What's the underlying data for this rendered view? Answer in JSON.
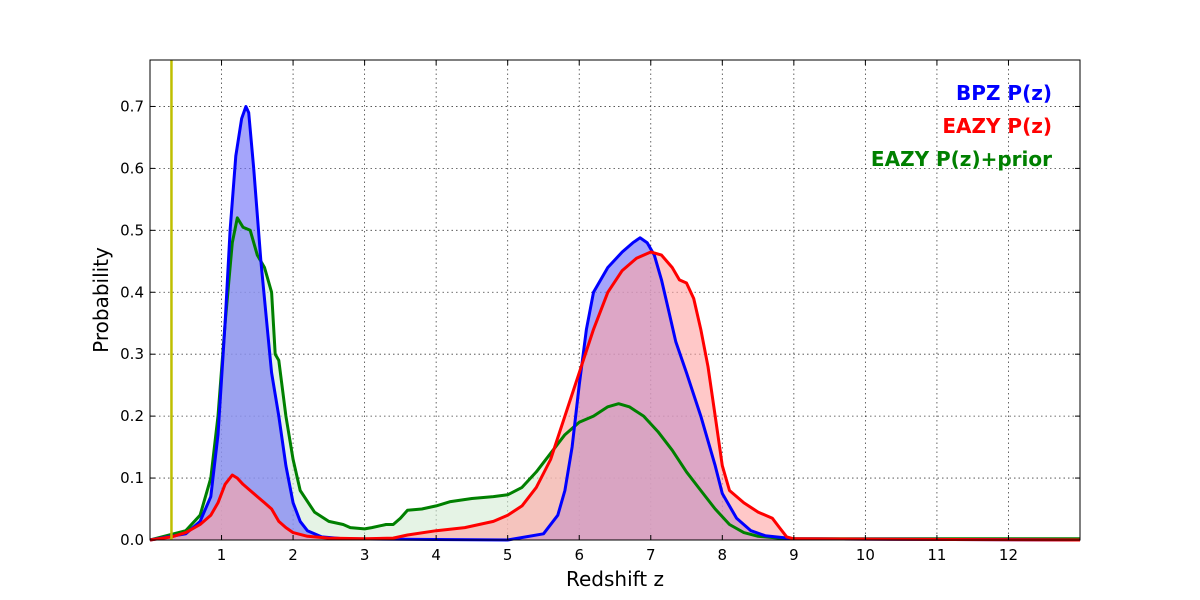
{
  "chart_data": {
    "type": "area",
    "xlabel": "Redshift z",
    "ylabel": "Probability",
    "xlim": [
      0,
      13
    ],
    "ylim": [
      0,
      0.775
    ],
    "x_ticks": [
      1,
      2,
      3,
      4,
      5,
      6,
      7,
      8,
      9,
      10,
      11,
      12
    ],
    "y_ticks": [
      0.0,
      0.1,
      0.2,
      0.3,
      0.4,
      0.5,
      0.6,
      0.7
    ],
    "grid": true,
    "legend_position": "top-right",
    "reference_line": {
      "x": 0.3,
      "color": "#bfbf00"
    },
    "series": [
      {
        "name": "EAZY P(z)+prior",
        "color": "#008000",
        "fill": "#d5ecd5",
        "points": [
          [
            0,
            0
          ],
          [
            0.5,
            0.015
          ],
          [
            0.7,
            0.04
          ],
          [
            0.85,
            0.1
          ],
          [
            0.95,
            0.2
          ],
          [
            1.05,
            0.35
          ],
          [
            1.15,
            0.48
          ],
          [
            1.22,
            0.52
          ],
          [
            1.3,
            0.505
          ],
          [
            1.4,
            0.5
          ],
          [
            1.5,
            0.46
          ],
          [
            1.6,
            0.44
          ],
          [
            1.7,
            0.4
          ],
          [
            1.75,
            0.3
          ],
          [
            1.8,
            0.29
          ],
          [
            1.9,
            0.2
          ],
          [
            2.0,
            0.13
          ],
          [
            2.1,
            0.08
          ],
          [
            2.3,
            0.045
          ],
          [
            2.5,
            0.03
          ],
          [
            2.7,
            0.025
          ],
          [
            2.8,
            0.02
          ],
          [
            3.0,
            0.018
          ],
          [
            3.1,
            0.02
          ],
          [
            3.3,
            0.025
          ],
          [
            3.4,
            0.025
          ],
          [
            3.5,
            0.035
          ],
          [
            3.6,
            0.048
          ],
          [
            3.8,
            0.05
          ],
          [
            4.0,
            0.055
          ],
          [
            4.2,
            0.062
          ],
          [
            4.5,
            0.067
          ],
          [
            4.8,
            0.07
          ],
          [
            5.0,
            0.073
          ],
          [
            5.2,
            0.085
          ],
          [
            5.4,
            0.11
          ],
          [
            5.6,
            0.14
          ],
          [
            5.8,
            0.17
          ],
          [
            6.0,
            0.19
          ],
          [
            6.2,
            0.2
          ],
          [
            6.4,
            0.215
          ],
          [
            6.55,
            0.22
          ],
          [
            6.7,
            0.215
          ],
          [
            6.9,
            0.2
          ],
          [
            7.1,
            0.175
          ],
          [
            7.3,
            0.145
          ],
          [
            7.5,
            0.11
          ],
          [
            7.7,
            0.08
          ],
          [
            7.9,
            0.05
          ],
          [
            8.1,
            0.025
          ],
          [
            8.3,
            0.012
          ],
          [
            8.5,
            0.006
          ],
          [
            8.8,
            0.003
          ],
          [
            9.0,
            0.002
          ],
          [
            13,
            0.002
          ]
        ]
      },
      {
        "name": "BPZ P(z)",
        "color": "#0000ff",
        "fill": "#6e6ef7",
        "points": [
          [
            0,
            0
          ],
          [
            0.5,
            0.01
          ],
          [
            0.7,
            0.03
          ],
          [
            0.85,
            0.07
          ],
          [
            0.95,
            0.17
          ],
          [
            1.05,
            0.35
          ],
          [
            1.12,
            0.5
          ],
          [
            1.2,
            0.62
          ],
          [
            1.28,
            0.68
          ],
          [
            1.34,
            0.7
          ],
          [
            1.38,
            0.69
          ],
          [
            1.45,
            0.6
          ],
          [
            1.55,
            0.45
          ],
          [
            1.65,
            0.33
          ],
          [
            1.7,
            0.27
          ],
          [
            1.8,
            0.2
          ],
          [
            1.9,
            0.12
          ],
          [
            2.0,
            0.06
          ],
          [
            2.1,
            0.03
          ],
          [
            2.2,
            0.015
          ],
          [
            2.4,
            0.005
          ],
          [
            2.7,
            0.002
          ],
          [
            5.0,
            0.0
          ],
          [
            5.5,
            0.01
          ],
          [
            5.7,
            0.04
          ],
          [
            5.8,
            0.08
          ],
          [
            5.9,
            0.15
          ],
          [
            6.0,
            0.25
          ],
          [
            6.1,
            0.34
          ],
          [
            6.2,
            0.4
          ],
          [
            6.4,
            0.44
          ],
          [
            6.6,
            0.465
          ],
          [
            6.75,
            0.48
          ],
          [
            6.85,
            0.488
          ],
          [
            6.95,
            0.48
          ],
          [
            7.05,
            0.46
          ],
          [
            7.15,
            0.42
          ],
          [
            7.25,
            0.37
          ],
          [
            7.35,
            0.32
          ],
          [
            7.5,
            0.27
          ],
          [
            7.7,
            0.2
          ],
          [
            7.9,
            0.12
          ],
          [
            8.0,
            0.075
          ],
          [
            8.2,
            0.035
          ],
          [
            8.4,
            0.015
          ],
          [
            8.6,
            0.007
          ],
          [
            9.0,
            0.002
          ],
          [
            13,
            0.0
          ]
        ]
      },
      {
        "name": "EAZY P(z)",
        "color": "#ff0000",
        "fill": "#ffa6a6",
        "points": [
          [
            0,
            0
          ],
          [
            0.3,
            0.005
          ],
          [
            0.5,
            0.012
          ],
          [
            0.7,
            0.025
          ],
          [
            0.85,
            0.04
          ],
          [
            0.95,
            0.06
          ],
          [
            1.05,
            0.09
          ],
          [
            1.15,
            0.105
          ],
          [
            1.22,
            0.1
          ],
          [
            1.3,
            0.09
          ],
          [
            1.4,
            0.08
          ],
          [
            1.5,
            0.07
          ],
          [
            1.6,
            0.06
          ],
          [
            1.7,
            0.05
          ],
          [
            1.8,
            0.03
          ],
          [
            1.9,
            0.02
          ],
          [
            2.0,
            0.012
          ],
          [
            2.2,
            0.006
          ],
          [
            2.5,
            0.003
          ],
          [
            3.0,
            0.002
          ],
          [
            3.4,
            0.003
          ],
          [
            3.6,
            0.008
          ],
          [
            4.0,
            0.015
          ],
          [
            4.4,
            0.02
          ],
          [
            4.8,
            0.03
          ],
          [
            5.0,
            0.04
          ],
          [
            5.2,
            0.055
          ],
          [
            5.4,
            0.085
          ],
          [
            5.6,
            0.13
          ],
          [
            5.8,
            0.2
          ],
          [
            6.0,
            0.27
          ],
          [
            6.2,
            0.34
          ],
          [
            6.4,
            0.4
          ],
          [
            6.6,
            0.435
          ],
          [
            6.8,
            0.455
          ],
          [
            7.0,
            0.465
          ],
          [
            7.15,
            0.46
          ],
          [
            7.3,
            0.44
          ],
          [
            7.4,
            0.42
          ],
          [
            7.5,
            0.415
          ],
          [
            7.6,
            0.39
          ],
          [
            7.7,
            0.34
          ],
          [
            7.8,
            0.28
          ],
          [
            7.9,
            0.2
          ],
          [
            8.0,
            0.12
          ],
          [
            8.1,
            0.08
          ],
          [
            8.3,
            0.06
          ],
          [
            8.5,
            0.045
          ],
          [
            8.7,
            0.035
          ],
          [
            8.8,
            0.02
          ],
          [
            8.9,
            0.005
          ],
          [
            9.0,
            0.002
          ],
          [
            13,
            0.0
          ]
        ]
      }
    ],
    "legend": [
      {
        "label": "BPZ P(z)",
        "color": "#0000ff"
      },
      {
        "label": "EAZY P(z)",
        "color": "#ff0000"
      },
      {
        "label": "EAZY P(z)+prior",
        "color": "#008000"
      }
    ]
  }
}
